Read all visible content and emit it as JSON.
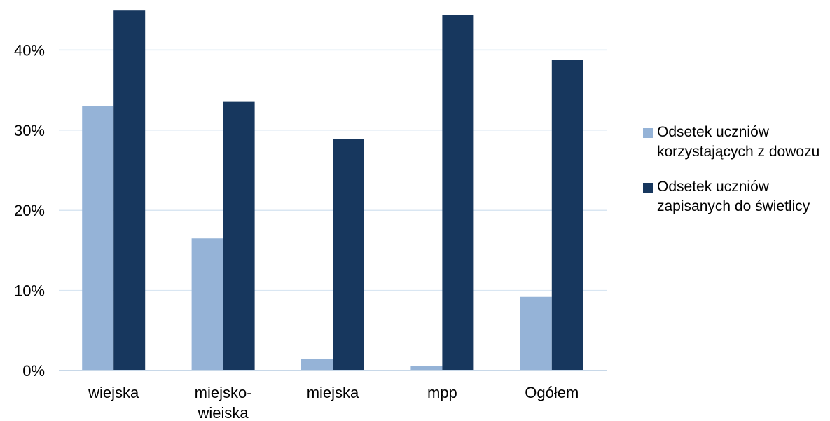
{
  "chart_data": {
    "type": "bar",
    "title": "",
    "xlabel": "",
    "ylabel": "",
    "categories": [
      "wiejska",
      "miejsko-\nwieiska",
      "miejska",
      "mpp",
      "Ogółem"
    ],
    "series": [
      {
        "name": "Odsetek uczniów korzystających z dowozu",
        "color": "#95b3d7",
        "values": [
          33.0,
          16.5,
          1.4,
          0.6,
          9.2
        ]
      },
      {
        "name": "Odsetek uczniów zapisanych do świetlicy",
        "color": "#17375e",
        "values": [
          45.0,
          33.6,
          28.9,
          44.4,
          38.8
        ]
      }
    ],
    "ylim": [
      0,
      45
    ],
    "yticks": [
      0,
      10,
      20,
      30,
      40
    ],
    "ytick_labels": [
      "0%",
      "10%",
      "20%",
      "30%",
      "40%"
    ],
    "grid": true,
    "grid_color": "#d9e6f2",
    "axis_color": "#c8d8e8",
    "legend_position": "right"
  }
}
